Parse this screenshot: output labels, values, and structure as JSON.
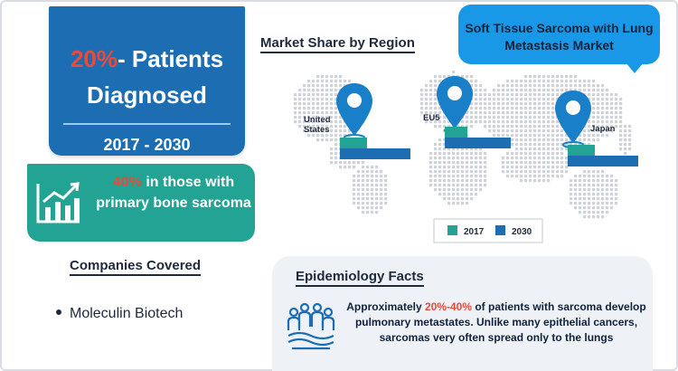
{
  "stat_card": {
    "percent": "20%",
    "suffix": "- Patients",
    "line2": "Diagnosed",
    "years": "2017 - 2030"
  },
  "bone_card": {
    "percent": "40%",
    "text": " in those with primary bone sarcoma",
    "icon": "growth-chart-icon"
  },
  "companies": {
    "title": "Companies Covered",
    "items": [
      "Moleculin Biotech"
    ]
  },
  "market_share": {
    "title": "Market Share by Region"
  },
  "bubble": {
    "title": "Soft Tissue Sarcoma with Lung Metastasis Market"
  },
  "epidemiology": {
    "title": "Epidemiology Facts",
    "prefix": "Approximately ",
    "percent": "20%-40%",
    "text": " of patients with sarcoma develop pulmonary metastates. Unlike many epithelial cancers, sarcomas very often spread only to the lungs",
    "icon": "people-group-icon"
  },
  "colors": {
    "brand_blue": "#1d6db3",
    "teal": "#23a394",
    "highlight_red": "#e84b3c",
    "bubble_blue": "#1a98e8",
    "bar_2017": "#23a394",
    "bar_2030": "#1d6db3",
    "map_dots": "#cfd3d9"
  },
  "chart_data": {
    "type": "bar",
    "orientation": "horizontal",
    "title": "Market Share by Region",
    "categories": [
      "United States",
      "EU5",
      "Japan"
    ],
    "series": [
      {
        "name": "2017",
        "values": [
          30,
          25,
          30
        ],
        "color": "#23a394"
      },
      {
        "name": "2030",
        "values": [
          78,
          73,
          78
        ],
        "color": "#1d6db3"
      }
    ],
    "xlim": [
      0,
      100
    ],
    "legend": "bottom",
    "grid": false
  }
}
